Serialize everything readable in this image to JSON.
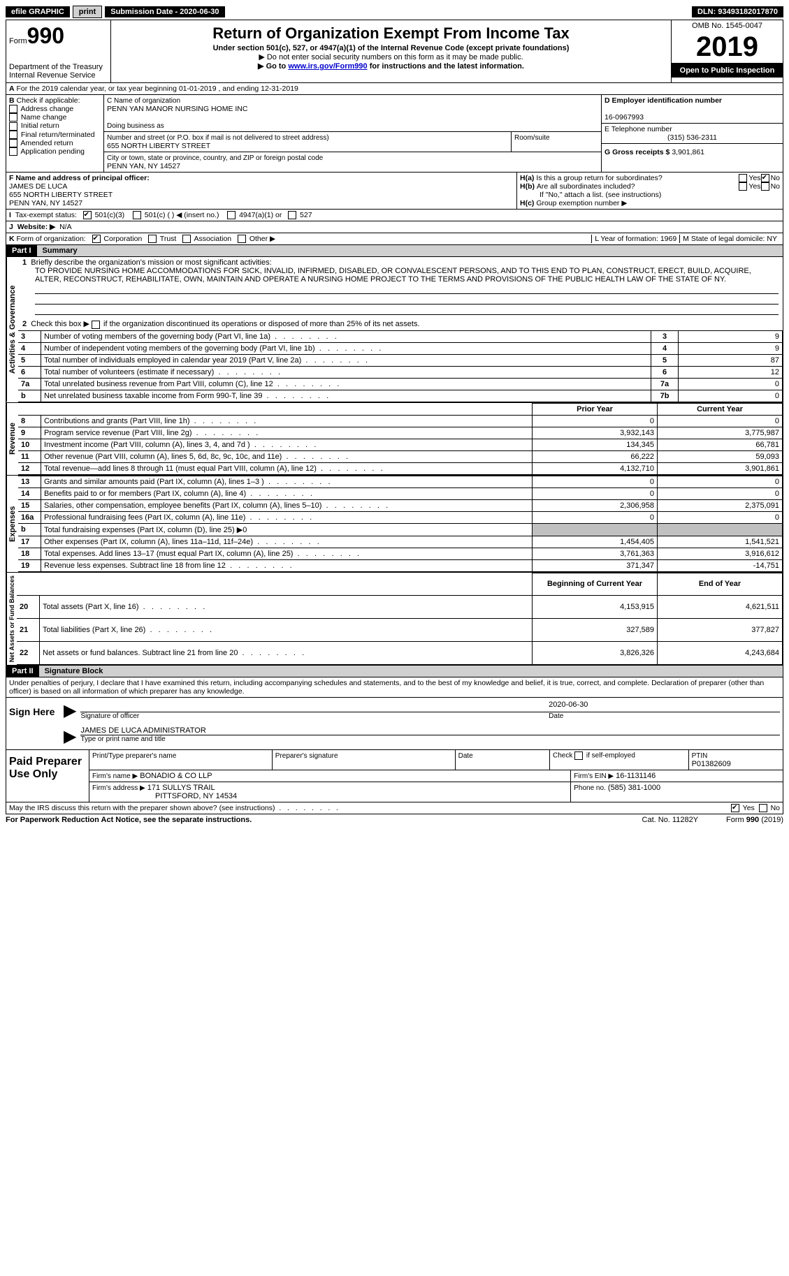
{
  "topbar": {
    "efile": "efile GRAPHIC",
    "print": "print",
    "submission": "Submission Date - 2020-06-30",
    "dln": "DLN: 93493182017870"
  },
  "header": {
    "form_word": "Form",
    "form_num": "990",
    "dept": "Department of the Treasury\nInternal Revenue Service",
    "title": "Return of Organization Exempt From Income Tax",
    "subtitle": "Under section 501(c), 527, or 4947(a)(1) of the Internal Revenue Code (except private foundations)",
    "note1": "▶ Do not enter social security numbers on this form as it may be made public.",
    "note2_pre": "▶ Go to ",
    "note2_link": "www.irs.gov/Form990",
    "note2_post": " for instructions and the latest information.",
    "omb": "OMB No. 1545-0047",
    "year": "2019",
    "inspection": "Open to Public Inspection"
  },
  "line_a": "For the 2019 calendar year, or tax year beginning 01-01-2019   , and ending 12-31-2019",
  "box_b": {
    "label": "Check if applicable:",
    "items": [
      "Address change",
      "Name change",
      "Initial return",
      "Final return/terminated",
      "Amended return",
      "Application pending"
    ]
  },
  "box_c": {
    "name_label": "C Name of organization",
    "name": "PENN YAN MANOR NURSING HOME INC",
    "dba_label": "Doing business as",
    "street_label": "Number and street (or P.O. box if mail is not delivered to street address)",
    "room_label": "Room/suite",
    "street": "655 NORTH LIBERTY STREET",
    "city_label": "City or town, state or province, country, and ZIP or foreign postal code",
    "city": "PENN YAN, NY  14527"
  },
  "box_d": {
    "label": "D Employer identification number",
    "value": "16-0967993"
  },
  "box_e": {
    "label": "E Telephone number",
    "value": "(315) 536-2311"
  },
  "box_g": {
    "label": "G Gross receipts $",
    "value": "3,901,861"
  },
  "box_f": {
    "label": "F Name and address of principal officer:",
    "name": "JAMES DE LUCA",
    "street": "655 NORTH LIBERTY STREET",
    "city": "PENN YAN, NY  14527"
  },
  "box_h": {
    "ha": "Is this a group return for subordinates?",
    "hb": "Are all subordinates included?",
    "hb_note": "If \"No,\" attach a list. (see instructions)",
    "hc": "Group exemption number ▶"
  },
  "box_i": {
    "label": "Tax-exempt status:",
    "opts": [
      "501(c)(3)",
      "501(c) (   ) ◀ (insert no.)",
      "4947(a)(1) or",
      "527"
    ]
  },
  "box_j": {
    "label": "Website: ▶",
    "value": "N/A"
  },
  "box_k": {
    "label": "Form of organization:",
    "opts": [
      "Corporation",
      "Trust",
      "Association",
      "Other ▶"
    ]
  },
  "box_l": {
    "label": "L Year of formation:",
    "value": "1969"
  },
  "box_m": {
    "label": "M State of legal domicile:",
    "value": "NY"
  },
  "part1": {
    "header": "Part I",
    "title": "Summary",
    "line1_label": "Briefly describe the organization's mission or most significant activities:",
    "line1_text": "TO PROVIDE NURSING HOME ACCOMMODATIONS FOR SICK, INVALID, INFIRMED, DISABLED, OR CONVALESCENT PERSONS, AND TO THIS END TO PLAN, CONSTRUCT, ERECT, BUILD, ACQUIRE, ALTER, RECONSTRUCT, REHABILITATE, OWN, MAINTAIN AND OPERATE A NURSING HOME PROJECT TO THE TERMS AND PROVISIONS OF THE PUBLIC HEALTH LAW OF THE STATE OF NY.",
    "line2": "Check this box ▶  if the organization discontinued its operations or disposed of more than 25% of its net assets.",
    "governance_label": "Activities & Governance",
    "revenue_label": "Revenue",
    "expenses_label": "Expenses",
    "netassets_label": "Net Assets or Fund Balances",
    "gov_rows": [
      {
        "n": "3",
        "t": "Number of voting members of the governing body (Part VI, line 1a)",
        "box": "3",
        "v": "9"
      },
      {
        "n": "4",
        "t": "Number of independent voting members of the governing body (Part VI, line 1b)",
        "box": "4",
        "v": "9"
      },
      {
        "n": "5",
        "t": "Total number of individuals employed in calendar year 2019 (Part V, line 2a)",
        "box": "5",
        "v": "87"
      },
      {
        "n": "6",
        "t": "Total number of volunteers (estimate if necessary)",
        "box": "6",
        "v": "12"
      },
      {
        "n": "7a",
        "t": "Total unrelated business revenue from Part VIII, column (C), line 12",
        "box": "7a",
        "v": "0"
      },
      {
        "n": "b",
        "t": "Net unrelated business taxable income from Form 990-T, line 39",
        "box": "7b",
        "v": "0"
      }
    ],
    "col_prior": "Prior Year",
    "col_current": "Current Year",
    "col_begin": "Beginning of Current Year",
    "col_end": "End of Year",
    "rev_rows": [
      {
        "n": "8",
        "t": "Contributions and grants (Part VIII, line 1h)",
        "p": "0",
        "c": "0"
      },
      {
        "n": "9",
        "t": "Program service revenue (Part VIII, line 2g)",
        "p": "3,932,143",
        "c": "3,775,987"
      },
      {
        "n": "10",
        "t": "Investment income (Part VIII, column (A), lines 3, 4, and 7d )",
        "p": "134,345",
        "c": "66,781"
      },
      {
        "n": "11",
        "t": "Other revenue (Part VIII, column (A), lines 5, 6d, 8c, 9c, 10c, and 11e)",
        "p": "66,222",
        "c": "59,093"
      },
      {
        "n": "12",
        "t": "Total revenue—add lines 8 through 11 (must equal Part VIII, column (A), line 12)",
        "p": "4,132,710",
        "c": "3,901,861"
      }
    ],
    "exp_rows": [
      {
        "n": "13",
        "t": "Grants and similar amounts paid (Part IX, column (A), lines 1–3 )",
        "p": "0",
        "c": "0"
      },
      {
        "n": "14",
        "t": "Benefits paid to or for members (Part IX, column (A), line 4)",
        "p": "0",
        "c": "0"
      },
      {
        "n": "15",
        "t": "Salaries, other compensation, employee benefits (Part IX, column (A), lines 5–10)",
        "p": "2,306,958",
        "c": "2,375,091"
      },
      {
        "n": "16a",
        "t": "Professional fundraising fees (Part IX, column (A), line 11e)",
        "p": "0",
        "c": "0"
      },
      {
        "n": "b",
        "t": "Total fundraising expenses (Part IX, column (D), line 25) ▶0",
        "p": "",
        "c": "",
        "shaded": true
      },
      {
        "n": "17",
        "t": "Other expenses (Part IX, column (A), lines 11a–11d, 11f–24e)",
        "p": "1,454,405",
        "c": "1,541,521"
      },
      {
        "n": "18",
        "t": "Total expenses. Add lines 13–17 (must equal Part IX, column (A), line 25)",
        "p": "3,761,363",
        "c": "3,916,612"
      },
      {
        "n": "19",
        "t": "Revenue less expenses. Subtract line 18 from line 12",
        "p": "371,347",
        "c": "-14,751"
      }
    ],
    "net_rows": [
      {
        "n": "20",
        "t": "Total assets (Part X, line 16)",
        "p": "4,153,915",
        "c": "4,621,511"
      },
      {
        "n": "21",
        "t": "Total liabilities (Part X, line 26)",
        "p": "327,589",
        "c": "377,827"
      },
      {
        "n": "22",
        "t": "Net assets or fund balances. Subtract line 21 from line 20",
        "p": "3,826,326",
        "c": "4,243,684"
      }
    ]
  },
  "part2": {
    "header": "Part II",
    "title": "Signature Block",
    "declaration": "Under penalties of perjury, I declare that I have examined this return, including accompanying schedules and statements, and to the best of my knowledge and belief, it is true, correct, and complete. Declaration of preparer (other than officer) is based on all information of which preparer has any knowledge.",
    "sign_here": "Sign Here",
    "sig_officer": "Signature of officer",
    "date_label": "Date",
    "sig_date": "2020-06-30",
    "officer_name": "JAMES DE LUCA  ADMINISTRATOR",
    "type_name": "Type or print name and title",
    "paid_preparer": "Paid Preparer Use Only",
    "prep_name_label": "Print/Type preparer's name",
    "prep_sig_label": "Preparer's signature",
    "check_self": "Check          if self-employed",
    "ptin_label": "PTIN",
    "ptin": "P01382609",
    "firm_name_label": "Firm's name   ▶",
    "firm_name": "BONADIO & CO LLP",
    "firm_ein_label": "Firm's EIN ▶",
    "firm_ein": "16-1131146",
    "firm_addr_label": "Firm's address ▶",
    "firm_addr": "171 SULLYS TRAIL",
    "firm_city": "PITTSFORD, NY  14534",
    "phone_label": "Phone no.",
    "phone": "(585) 381-1000",
    "discuss": "May the IRS discuss this return with the preparer shown above? (see instructions)",
    "paperwork": "For Paperwork Reduction Act Notice, see the separate instructions.",
    "cat": "Cat. No. 11282Y",
    "form_foot": "Form 990 (2019)"
  }
}
